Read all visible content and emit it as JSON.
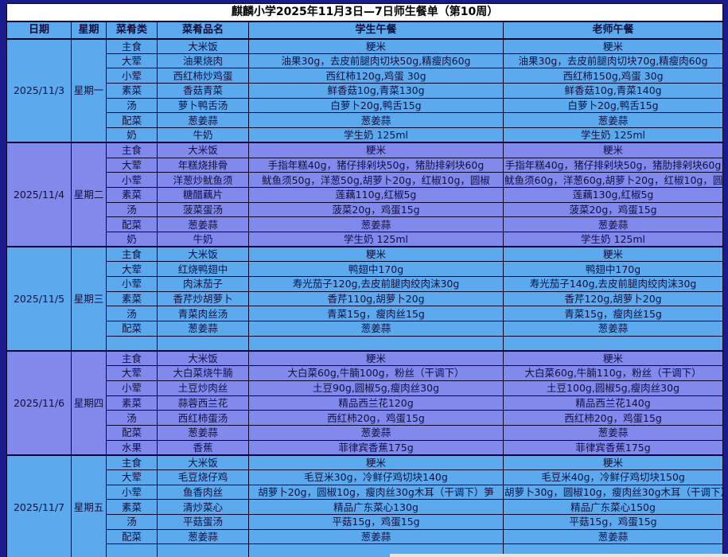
{
  "title": "麒麟小学2025年11月3日—7日师生餐单（第10周）",
  "columns": [
    "日期",
    "星期",
    "菜肴类",
    "菜肴品名",
    "学生午餐",
    "老师午餐"
  ],
  "colors": {
    "frame": "#1A1A8C",
    "day_block_cyan": "#5CA9EE",
    "day_block_purple": "#8289EC",
    "title_bg": "#FFFFFF",
    "cell_text": "#10103F"
  },
  "days": [
    {
      "date": "2025/11/3",
      "weekday": "星期一",
      "theme": "cyan",
      "rows": [
        {
          "category": "主食",
          "dish": "大米饭",
          "student": "粳米",
          "teacher": "粳米"
        },
        {
          "category": "大荤",
          "dish": "油果烧肉",
          "student": "油果30g，去皮前腿肉切块50g,精瘦肉60g",
          "teacher": "油果30g，去皮前腿肉切块70g,精瘦肉60g"
        },
        {
          "category": "小荤",
          "dish": "西红柿炒鸡蛋",
          "student": "西红柿120g,鸡蛋 30g",
          "teacher": "西红柿150g,鸡蛋 30g"
        },
        {
          "category": "素菜",
          "dish": "香菇青菜",
          "student": "鲜香菇10g,青菜130g",
          "teacher": "鲜香菇10g,青菜140g"
        },
        {
          "category": "汤",
          "dish": "萝卜鸭舌汤",
          "student": "白萝卜20g,鸭舌15g",
          "teacher": "白萝卜20g,鸭舌15g"
        },
        {
          "category": "配菜",
          "dish": "葱姜蒜",
          "student": "葱姜蒜",
          "teacher": "葱姜蒜"
        },
        {
          "category": "奶",
          "dish": "牛奶",
          "student": "学生奶 125ml",
          "teacher": "学生奶 125ml"
        }
      ]
    },
    {
      "date": "2025/11/4",
      "weekday": "星期二",
      "theme": "purple",
      "rows": [
        {
          "category": "主食",
          "dish": "大米饭",
          "student": "粳米",
          "teacher": "粳米"
        },
        {
          "category": "大荤",
          "dish": "年糕烧排骨",
          "student": "手指年糕40g，猪仔排剁块50g，猪肋排剁块60g",
          "teacher": "手指年糕40g，猪仔排剁块50g，猪肋排剁块60g"
        },
        {
          "category": "小荤",
          "dish": "洋葱炒鱿鱼须",
          "student": "鱿鱼须50g，洋葱50g,胡萝卜20g，红椒10g，圆椒",
          "teacher": "鱿鱼须60g，洋葱60g,胡萝卜20g，红椒10g，圆椒"
        },
        {
          "category": "素菜",
          "dish": "糖醋藕片",
          "student": "莲藕110g,红椒5g",
          "teacher": "莲藕130g,红椒5g"
        },
        {
          "category": "汤",
          "dish": "菠菜蛋汤",
          "student": "菠菜20g，鸡蛋15g",
          "teacher": "菠菜20g，鸡蛋15g"
        },
        {
          "category": "配菜",
          "dish": "葱姜蒜",
          "student": "葱姜蒜",
          "teacher": "葱姜蒜"
        },
        {
          "category": "奶",
          "dish": "牛奶",
          "student": "学生奶 125ml",
          "teacher": "学生奶 125ml"
        }
      ]
    },
    {
      "date": "2025/11/5",
      "weekday": "星期三",
      "theme": "cyan",
      "rows": [
        {
          "category": "主食",
          "dish": "大米饭",
          "student": "粳米",
          "teacher": "粳米"
        },
        {
          "category": "大荤",
          "dish": "红烧鸭翅中",
          "student": "鸭翅中170g",
          "teacher": "鸭翅中170g"
        },
        {
          "category": "小荤",
          "dish": "肉沫茄子",
          "student": "寿光茄子120g,去皮前腿肉绞肉沫30g",
          "teacher": "寿光茄子140g,去皮前腿肉绞肉沫30g"
        },
        {
          "category": "素菜",
          "dish": "香芹炒胡萝卜",
          "student": "香芹110g,胡萝卜20g",
          "teacher": "香芹120g,胡萝卜20g"
        },
        {
          "category": "汤",
          "dish": "青菜肉丝汤",
          "student": "青菜15g，瘦肉丝15g",
          "teacher": "青菜15g，瘦肉丝15g"
        },
        {
          "category": "配菜",
          "dish": "葱姜蒜",
          "student": "葱姜蒜",
          "teacher": "葱姜蒜"
        },
        {
          "category": "",
          "dish": "",
          "student": "",
          "teacher": ""
        }
      ]
    },
    {
      "date": "2025/11/6",
      "weekday": "星期四",
      "theme": "purple",
      "rows": [
        {
          "category": "主食",
          "dish": "大米饭",
          "student": "粳米",
          "teacher": "粳米"
        },
        {
          "category": "大荤",
          "dish": "大白菜烧牛腩",
          "student": "大白菜60g,牛腩100g，粉丝（干调下）",
          "teacher": "大白菜60g,牛腩110g，粉丝（干调下）"
        },
        {
          "category": "小荤",
          "dish": "土豆炒肉丝",
          "student": "土豆90g,圆椒5g,瘦肉丝30g",
          "teacher": "土豆100g,圆椒5g,瘦肉丝30g"
        },
        {
          "category": "素菜",
          "dish": "蒜蓉西兰花",
          "student": "精品西兰花120g",
          "teacher": "精品西兰花140g"
        },
        {
          "category": "汤",
          "dish": "西红柿蛋汤",
          "student": "西红柿20g，鸡蛋15g",
          "teacher": "西红柿20g，鸡蛋15g"
        },
        {
          "category": "配菜",
          "dish": "葱姜蒜",
          "student": "葱姜蒜",
          "teacher": "葱姜蒜"
        },
        {
          "category": "水果",
          "dish": "香蕉",
          "student": "菲律宾香蕉175g",
          "teacher": "菲律宾香蕉175g"
        }
      ]
    },
    {
      "date": "2025/11/7",
      "weekday": "星期五",
      "theme": "cyan",
      "rows": [
        {
          "category": "主食",
          "dish": "大米饭",
          "student": "粳米",
          "teacher": "粳米"
        },
        {
          "category": "大荤",
          "dish": "毛豆烧仔鸡",
          "student": "毛豆米30g，冷鲜仔鸡切块140g",
          "teacher": "毛豆米40g，冷鲜仔鸡切块150g"
        },
        {
          "category": "小荤",
          "dish": "鱼香肉丝",
          "student": "胡萝卜20g，圆椒10g，瘦肉丝30g木耳（干调下）笋",
          "teacher": "胡萝卜30g，圆椒10g，瘦肉丝30g木耳（干调下）笋"
        },
        {
          "category": "素菜",
          "dish": "清炒菜心",
          "student": "精品广东菜心130g",
          "teacher": "精品广东菜心150g"
        },
        {
          "category": "汤",
          "dish": "平菇蛋汤",
          "student": "平菇15g，鸡蛋15g",
          "teacher": "平菇15g，鸡蛋15g"
        },
        {
          "category": "配菜",
          "dish": "葱姜蒜",
          "student": "葱姜蒜",
          "teacher": "葱姜蒜"
        },
        {
          "category": "",
          "dish": "",
          "student": "",
          "teacher": ""
        }
      ]
    }
  ]
}
